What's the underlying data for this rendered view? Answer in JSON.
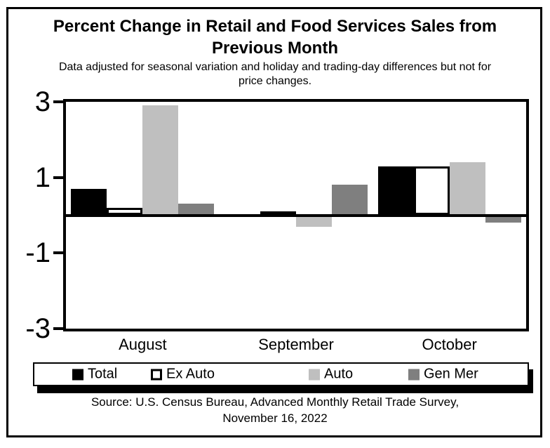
{
  "title": {
    "line1": "Percent Change in Retail and Food Services Sales from",
    "line2": "Previous Month"
  },
  "subtitle": {
    "line1": "Data adjusted for seasonal variation and holiday and trading-day differences but not for",
    "line2": "price changes."
  },
  "source": {
    "line1": "Source: U.S. Census Bureau, Advanced Monthly Retail Trade Survey,",
    "line2": "November 16, 2022"
  },
  "colors": {
    "total": "#000000",
    "ex_auto": "#ffffff",
    "ex_auto_outline": "#000000",
    "auto": "#bfbfbf",
    "gen_mer": "#7f7f7f",
    "axis": "#000000",
    "background": "#ffffff"
  },
  "chart_data": {
    "type": "bar",
    "title": "Percent Change in Retail and Food Services Sales from Previous Month",
    "subtitle": "Data adjusted for seasonal variation and holiday and trading-day differences but not for price changes.",
    "categories": [
      "August",
      "September",
      "October"
    ],
    "series": [
      {
        "name": "Total",
        "color": "#000000",
        "outlined": false,
        "values": [
          0.7,
          0.0,
          1.3
        ]
      },
      {
        "name": "Ex Auto",
        "color": "#ffffff",
        "outlined": true,
        "values": [
          0.2,
          0.1,
          1.3
        ]
      },
      {
        "name": "Auto",
        "color": "#bfbfbf",
        "outlined": false,
        "values": [
          2.9,
          -0.3,
          1.4
        ]
      },
      {
        "name": "Gen Mer",
        "color": "#7f7f7f",
        "outlined": false,
        "values": [
          0.3,
          0.8,
          -0.2
        ]
      }
    ],
    "ylim": [
      -3,
      3
    ],
    "yticks": [
      3,
      1,
      -1,
      -3
    ],
    "xlabel": "",
    "ylabel": "",
    "grid": false,
    "legend_position": "bottom"
  }
}
